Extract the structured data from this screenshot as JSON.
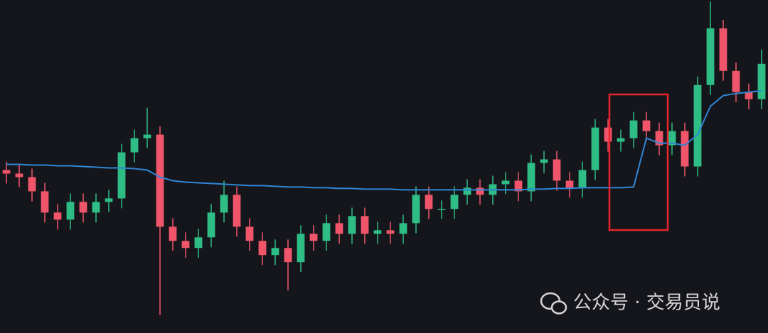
{
  "chart_data": {
    "type": "candlestick",
    "open": [
      230,
      225,
      220,
      200,
      170,
      160,
      185,
      170,
      185,
      190,
      255,
      275,
      280,
      150,
      130,
      120,
      135,
      170,
      195,
      150,
      130,
      110,
      120,
      100,
      140,
      130,
      155,
      140,
      165,
      140,
      145,
      140,
      155,
      195,
      175,
      175,
      195,
      205,
      195,
      210,
      215,
      200,
      240,
      245,
      215,
      205,
      230,
      290,
      270,
      275,
      300,
      285,
      265,
      285,
      235,
      350,
      430,
      370,
      340,
      330
    ],
    "high": [
      242,
      237,
      232,
      212,
      182,
      197,
      197,
      197,
      202,
      267,
      287,
      318,
      292,
      162,
      142,
      147,
      182,
      215,
      207,
      162,
      142,
      132,
      132,
      152,
      152,
      167,
      167,
      177,
      177,
      157,
      157,
      167,
      207,
      207,
      187,
      207,
      217,
      217,
      222,
      227,
      227,
      252,
      257,
      257,
      227,
      242,
      302,
      302,
      287,
      312,
      312,
      297,
      297,
      297,
      362,
      468,
      442,
      382,
      352,
      400
    ],
    "low": [
      211,
      206,
      186,
      156,
      146,
      146,
      156,
      156,
      171,
      176,
      241,
      261,
      25,
      116,
      106,
      106,
      121,
      156,
      136,
      116,
      96,
      96,
      60,
      86,
      116,
      116,
      126,
      126,
      126,
      126,
      126,
      126,
      141,
      161,
      161,
      161,
      181,
      181,
      181,
      196,
      186,
      186,
      226,
      201,
      191,
      191,
      216,
      256,
      256,
      261,
      271,
      251,
      251,
      221,
      221,
      336,
      356,
      326,
      316,
      316
    ],
    "close": [
      225,
      220,
      200,
      170,
      160,
      185,
      170,
      185,
      190,
      255,
      275,
      280,
      150,
      130,
      120,
      135,
      170,
      195,
      150,
      130,
      110,
      120,
      100,
      140,
      130,
      155,
      140,
      165,
      140,
      145,
      140,
      155,
      195,
      175,
      175,
      195,
      205,
      195,
      210,
      215,
      200,
      240,
      245,
      215,
      205,
      230,
      290,
      270,
      275,
      300,
      285,
      265,
      285,
      235,
      350,
      430,
      370,
      340,
      330,
      380
    ],
    "up_color": "#2ebd85",
    "down_color": "#f0556a",
    "ma": {
      "color": "#2f86d6",
      "values": [
        238,
        238,
        237,
        237,
        236,
        236,
        235,
        234,
        233,
        233,
        232,
        230,
        220,
        215,
        213,
        212,
        211,
        210,
        209,
        208,
        208,
        207,
        206,
        206,
        205,
        205,
        204,
        204,
        203,
        203,
        203,
        202,
        202,
        202,
        202,
        202,
        202,
        202,
        202,
        202,
        202,
        203,
        203,
        204,
        204,
        205,
        205,
        205,
        205,
        206,
        275,
        268,
        268,
        265,
        280,
        320,
        335,
        338,
        340,
        342
      ]
    },
    "ylim": [
      0,
      470
    ]
  },
  "watermark": "公众号 · 交易员说"
}
